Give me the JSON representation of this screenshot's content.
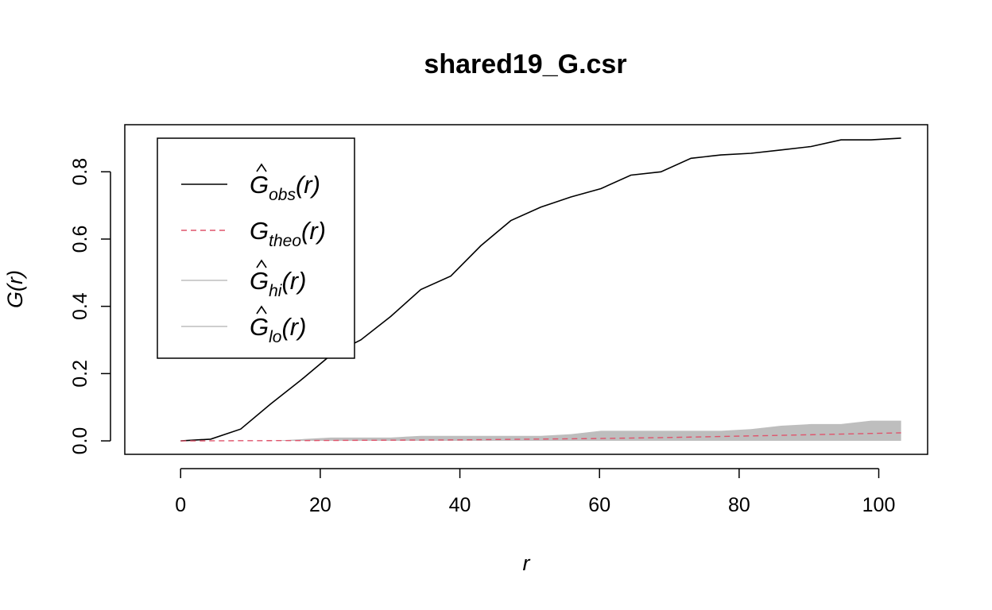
{
  "chart_data": {
    "type": "line",
    "title": "shared19_G.csr",
    "xlabel": "r",
    "ylabel": "G(r)",
    "xlim": [
      -8,
      107
    ],
    "ylim": [
      -0.04,
      0.94
    ],
    "x_ticks": [
      0,
      20,
      40,
      60,
      80,
      100
    ],
    "y_ticks": [
      0.0,
      0.2,
      0.4,
      0.6,
      0.8
    ],
    "x_tick_labels": [
      "0",
      "20",
      "40",
      "60",
      "80",
      "100"
    ],
    "y_tick_labels": [
      "0.0",
      "0.2",
      "0.4",
      "0.6",
      "0.8"
    ],
    "legend_position": "top-left",
    "legend": [
      {
        "main": "G",
        "hat": true,
        "sub": "obs",
        "arg": "(r)",
        "color": "#000000",
        "style": "solid"
      },
      {
        "main": "G",
        "hat": false,
        "sub": "theo",
        "arg": "(r)",
        "color": "#DF536B",
        "style": "dashed"
      },
      {
        "main": "G",
        "hat": true,
        "sub": "hi",
        "arg": "(r)",
        "color": "#BEBEBE",
        "style": "solid"
      },
      {
        "main": "G",
        "hat": true,
        "sub": "lo",
        "arg": "(r)",
        "color": "#BEBEBE",
        "style": "solid"
      }
    ],
    "series": [
      {
        "key": "obs",
        "color": "#000000",
        "x": [
          0,
          4.3,
          8.6,
          12.9,
          17.2,
          21.5,
          25.8,
          30.1,
          34.4,
          38.7,
          43.0,
          47.3,
          51.6,
          55.9,
          60.2,
          64.5,
          68.8,
          73.1,
          77.4,
          81.7,
          86.0,
          90.3,
          94.6,
          98.9,
          103.2
        ],
        "values": [
          0.0,
          0.005,
          0.035,
          0.11,
          0.18,
          0.255,
          0.3,
          0.37,
          0.45,
          0.49,
          0.58,
          0.655,
          0.695,
          0.725,
          0.75,
          0.79,
          0.8,
          0.84,
          0.85,
          0.855,
          0.865,
          0.875,
          0.895,
          0.895,
          0.9
        ]
      },
      {
        "key": "theo",
        "color": "#DF536B",
        "x": [
          0,
          10,
          20,
          30,
          40,
          50,
          60,
          70,
          80,
          90,
          103.2
        ],
        "values": [
          0.0,
          0.0005,
          0.001,
          0.002,
          0.003,
          0.005,
          0.007,
          0.01,
          0.014,
          0.018,
          0.024
        ]
      }
    ],
    "envelope": {
      "color": "#BEBEBE",
      "x": [
        0,
        4.3,
        8.6,
        12.9,
        17.2,
        21.5,
        25.8,
        30.1,
        34.4,
        38.7,
        43.0,
        47.3,
        51.6,
        55.9,
        60.2,
        64.5,
        68.8,
        73.1,
        77.4,
        81.7,
        86.0,
        90.3,
        94.6,
        98.9,
        103.2
      ],
      "hi": [
        0.0,
        0.0,
        0.0,
        0.0,
        0.005,
        0.01,
        0.01,
        0.01,
        0.015,
        0.015,
        0.015,
        0.015,
        0.015,
        0.02,
        0.03,
        0.03,
        0.03,
        0.03,
        0.03,
        0.035,
        0.045,
        0.05,
        0.05,
        0.06,
        0.06
      ],
      "lo": [
        0,
        0,
        0,
        0,
        0,
        0,
        0,
        0,
        0,
        0,
        0,
        0,
        0,
        0,
        0,
        0,
        0,
        0,
        0,
        0,
        0,
        0,
        0,
        0,
        0
      ]
    }
  }
}
